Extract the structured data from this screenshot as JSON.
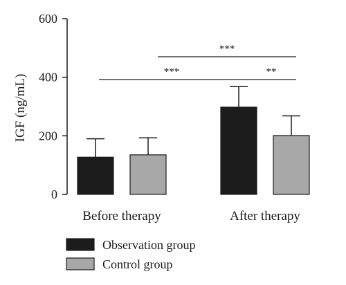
{
  "chart_data": {
    "type": "bar",
    "categories": [
      "Before therapy",
      "After therapy"
    ],
    "series": [
      {
        "name": "Observation group",
        "values": [
          127,
          298
        ],
        "errors": [
          63,
          70
        ],
        "color": "#1c1c1c"
      },
      {
        "name": "Control group",
        "values": [
          135,
          201
        ],
        "errors": [
          58,
          67
        ],
        "color": "#a8a8a8"
      }
    ],
    "ylabel": "IGF (ng/mL)",
    "xlabel": "",
    "ylim": [
      0,
      600
    ],
    "yticks": [
      0,
      200,
      400,
      600
    ],
    "grid": false,
    "legend_placement": "bottom-left",
    "significance": [
      {
        "label": "***",
        "from": "Before therapy",
        "to": "After therapy · Observation group"
      },
      {
        "label": "**",
        "from": "After therapy · Observation group",
        "to": "After therapy · Control group"
      },
      {
        "label": "***",
        "from": "Before therapy · Control group",
        "to": "After therapy · Control group"
      }
    ]
  }
}
